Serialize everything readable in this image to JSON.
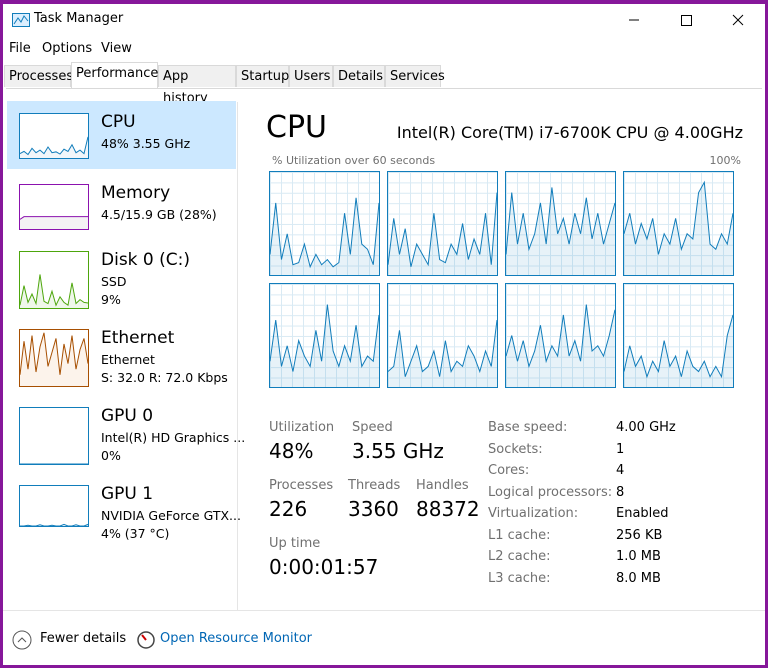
{
  "window_title": "Task Manager",
  "menu": [
    "File",
    "Options",
    "View"
  ],
  "tabs": [
    "Processes",
    "Performance",
    "App history",
    "Startup",
    "Users",
    "Details",
    "Services"
  ],
  "sidebar": [
    {
      "name": "CPU",
      "lines": [
        "48%  3.55 GHz"
      ],
      "graph": [
        10,
        15,
        8,
        22,
        12,
        18,
        10,
        25,
        12,
        14,
        9,
        20,
        15,
        30,
        12,
        18,
        10,
        48
      ]
    },
    {
      "name": "Memory",
      "lines": [
        "4.5/15.9 GB (28%)"
      ],
      "graph": [
        22,
        28,
        28,
        28,
        28,
        28,
        28,
        28,
        28,
        28,
        28,
        28,
        28,
        28,
        28,
        28,
        28,
        28
      ]
    },
    {
      "name": "Disk 0 (C:)",
      "lines": [
        "SSD",
        "9%"
      ],
      "graph": [
        5,
        40,
        10,
        25,
        8,
        60,
        12,
        8,
        30,
        5,
        20,
        10,
        5,
        45,
        8,
        15,
        10,
        9
      ]
    },
    {
      "name": "Ethernet",
      "lines": [
        "Ethernet",
        "S: 32.0  R: 72.0 Kbps"
      ],
      "graph": [
        20,
        80,
        30,
        90,
        25,
        70,
        95,
        35,
        60,
        85,
        20,
        75,
        40,
        90,
        30,
        65,
        85,
        40
      ]
    },
    {
      "name": "GPU 0",
      "lines": [
        "Intel(R) HD Graphics ...",
        "0%"
      ],
      "graph": [
        0,
        0,
        0,
        0,
        0,
        0,
        0,
        0,
        0,
        0,
        0,
        0,
        0,
        0,
        0,
        0,
        0,
        0
      ]
    },
    {
      "name": "GPU 1",
      "lines": [
        "NVIDIA GeForce GTX...",
        "4% (37 °C)"
      ],
      "graph": [
        0,
        0,
        2,
        0,
        0,
        3,
        0,
        0,
        2,
        0,
        0,
        4,
        0,
        0,
        3,
        0,
        0,
        4
      ]
    }
  ],
  "detail": {
    "title": "CPU",
    "processor": "Intel(R) Core(TM) i7-6700K CPU @ 4.00GHz",
    "graph_label": "% Utilization over 60 seconds",
    "graph_max": "100%",
    "cores": [
      [
        20,
        70,
        15,
        40,
        10,
        12,
        30,
        8,
        20,
        10,
        15,
        8,
        12,
        60,
        20,
        75,
        30,
        25,
        10,
        70
      ],
      [
        10,
        55,
        20,
        45,
        8,
        30,
        20,
        10,
        60,
        15,
        12,
        30,
        20,
        50,
        15,
        35,
        20,
        60,
        10,
        80
      ],
      [
        20,
        80,
        30,
        60,
        25,
        40,
        70,
        30,
        85,
        40,
        55,
        30,
        60,
        40,
        75,
        35,
        60,
        30,
        50,
        70
      ],
      [
        40,
        60,
        30,
        50,
        35,
        55,
        20,
        40,
        30,
        55,
        25,
        40,
        35,
        80,
        90,
        30,
        25,
        40,
        30,
        60
      ],
      [
        25,
        65,
        20,
        40,
        15,
        45,
        30,
        20,
        55,
        25,
        80,
        35,
        20,
        40,
        25,
        60,
        20,
        30,
        25,
        70
      ],
      [
        15,
        20,
        55,
        10,
        25,
        40,
        15,
        20,
        35,
        10,
        45,
        15,
        25,
        20,
        40,
        30,
        15,
        35,
        20,
        65
      ],
      [
        30,
        50,
        25,
        45,
        20,
        35,
        60,
        25,
        40,
        30,
        70,
        30,
        45,
        25,
        80,
        35,
        40,
        30,
        50,
        75
      ],
      [
        15,
        40,
        20,
        30,
        10,
        25,
        15,
        45,
        20,
        30,
        10,
        35,
        20,
        15,
        25,
        10,
        20,
        10,
        50,
        70
      ]
    ],
    "stats": [
      {
        "label": "Utilization",
        "value": "48%"
      },
      {
        "label": "Speed",
        "value": "3.55 GHz"
      },
      {
        "label": "Processes",
        "value": "226"
      },
      {
        "label": "Threads",
        "value": "3360"
      },
      {
        "label": "Handles",
        "value": "88372"
      },
      {
        "label": "Up time",
        "value": "0:00:01:57"
      }
    ],
    "specs": [
      {
        "label": "Base speed:",
        "value": "4.00 GHz"
      },
      {
        "label": "Sockets:",
        "value": "1"
      },
      {
        "label": "Cores:",
        "value": "4"
      },
      {
        "label": "Logical processors:",
        "value": "8"
      },
      {
        "label": "Virtualization:",
        "value": "Enabled"
      },
      {
        "label": "L1 cache:",
        "value": "256 KB"
      },
      {
        "label": "L2 cache:",
        "value": "1.0 MB"
      },
      {
        "label": "L3 cache:",
        "value": "8.0 MB"
      }
    ]
  },
  "footer": {
    "fewer_details": "Fewer details",
    "resource_monitor": "Open Resource Monitor"
  }
}
